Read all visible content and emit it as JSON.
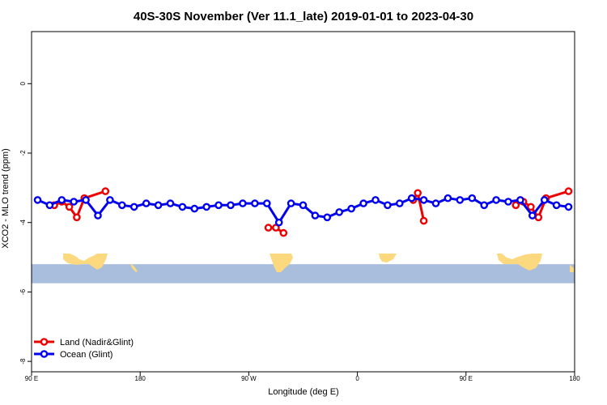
{
  "chart_data": {
    "type": "line",
    "title": "40S-30S November (Ver 11.1_late)   2019-01-01 to 2023-04-30",
    "xlabel": "Longitude (deg E)",
    "ylabel": "XCO2 - MLO trend (ppm)",
    "xlim": [
      90,
      450
    ],
    "ylim": [
      -8.3,
      1.5
    ],
    "x_ticks": [
      {
        "value": 90,
        "label": "90 E"
      },
      {
        "value": 162,
        "label": "180"
      },
      {
        "value": 234,
        "label": "90 W"
      },
      {
        "value": 306,
        "label": "0"
      },
      {
        "value": 378,
        "label": "90 E"
      },
      {
        "value": 450,
        "label": "180"
      }
    ],
    "y_ticks": [
      {
        "value": 0,
        "label": "0"
      },
      {
        "value": -2,
        "label": "-2"
      },
      {
        "value": -4,
        "label": "-4"
      },
      {
        "value": -6,
        "label": "-6"
      },
      {
        "value": -8,
        "label": "-8"
      }
    ],
    "map_band": {
      "y_top": -5.2,
      "y_bottom": -5.75,
      "ocean_color": "#a9bedd",
      "land_color": "#fcd97e"
    },
    "series": [
      {
        "name": "Land (Nadir&Glint)",
        "color": "#ee0000",
        "segments": [
          [
            [
              105,
              -3.5
            ],
            [
              110,
              -3.4
            ],
            [
              115,
              -3.55
            ],
            [
              120,
              -3.85
            ],
            [
              125,
              -3.3
            ],
            [
              139,
              -3.1
            ]
          ],
          [
            [
              247,
              -4.15
            ],
            [
              252,
              -4.15
            ],
            [
              257,
              -4.3
            ]
          ],
          [
            [
              343,
              -3.35
            ],
            [
              346,
              -3.15
            ],
            [
              350,
              -3.95
            ]
          ],
          [
            [
              411,
              -3.5
            ],
            [
              416,
              -3.4
            ],
            [
              421,
              -3.55
            ],
            [
              426,
              -3.85
            ],
            [
              431,
              -3.3
            ],
            [
              446,
              -3.1
            ]
          ]
        ]
      },
      {
        "name": "Ocean (Glint)",
        "color": "#0000ee",
        "segments": [
          [
            [
              94,
              -3.35
            ],
            [
              102,
              -3.5
            ],
            [
              110,
              -3.35
            ],
            [
              118,
              -3.4
            ],
            [
              126,
              -3.35
            ],
            [
              134,
              -3.8
            ],
            [
              142,
              -3.35
            ],
            [
              150,
              -3.5
            ],
            [
              158,
              -3.55
            ],
            [
              166,
              -3.45
            ],
            [
              174,
              -3.5
            ],
            [
              182,
              -3.45
            ],
            [
              190,
              -3.55
            ],
            [
              198,
              -3.6
            ],
            [
              206,
              -3.55
            ],
            [
              214,
              -3.5
            ],
            [
              222,
              -3.5
            ],
            [
              230,
              -3.45
            ],
            [
              238,
              -3.45
            ],
            [
              246,
              -3.45
            ],
            [
              254,
              -4.0
            ],
            [
              262,
              -3.45
            ],
            [
              270,
              -3.5
            ],
            [
              278,
              -3.8
            ],
            [
              286,
              -3.85
            ],
            [
              294,
              -3.7
            ],
            [
              302,
              -3.6
            ],
            [
              310,
              -3.45
            ],
            [
              318,
              -3.35
            ],
            [
              326,
              -3.5
            ],
            [
              334,
              -3.45
            ],
            [
              342,
              -3.3
            ],
            [
              350,
              -3.35
            ],
            [
              358,
              -3.45
            ],
            [
              366,
              -3.3
            ],
            [
              374,
              -3.35
            ],
            [
              382,
              -3.3
            ],
            [
              390,
              -3.5
            ],
            [
              398,
              -3.35
            ],
            [
              406,
              -3.4
            ],
            [
              414,
              -3.35
            ],
            [
              422,
              -3.8
            ],
            [
              430,
              -3.35
            ],
            [
              438,
              -3.5
            ],
            [
              446,
              -3.55
            ]
          ]
        ]
      }
    ],
    "legend": {
      "placement": "bottom-left"
    }
  }
}
